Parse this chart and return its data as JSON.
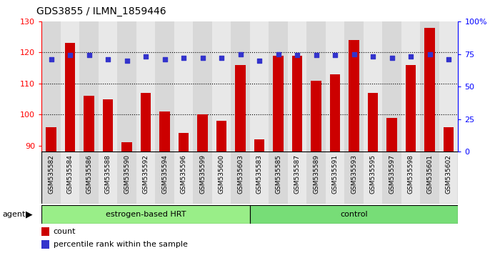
{
  "title": "GDS3855 / ILMN_1859446",
  "samples": [
    "GSM535582",
    "GSM535584",
    "GSM535586",
    "GSM535588",
    "GSM535590",
    "GSM535592",
    "GSM535594",
    "GSM535596",
    "GSM535599",
    "GSM535600",
    "GSM535603",
    "GSM535583",
    "GSM535585",
    "GSM535587",
    "GSM535589",
    "GSM535591",
    "GSM535593",
    "GSM535595",
    "GSM535597",
    "GSM535598",
    "GSM535601",
    "GSM535602"
  ],
  "counts": [
    96,
    123,
    106,
    105,
    91,
    107,
    101,
    94,
    100,
    98,
    116,
    92,
    119,
    119,
    111,
    113,
    124,
    107,
    99,
    116,
    128,
    96
  ],
  "percentiles": [
    71,
    74,
    74,
    71,
    70,
    73,
    71,
    72,
    72,
    72,
    75,
    70,
    75,
    74,
    74,
    74,
    75,
    73,
    72,
    73,
    75,
    71
  ],
  "bar_color": "#cc0000",
  "dot_color": "#3333cc",
  "ylim_left": [
    88,
    130
  ],
  "ylim_right": [
    0,
    100
  ],
  "yticks_left": [
    90,
    100,
    110,
    120,
    130
  ],
  "yticks_right": [
    0,
    25,
    50,
    75,
    100
  ],
  "hrt_count": 11,
  "ctrl_count": 11,
  "hrt_color": "#99ee88",
  "ctrl_color": "#77dd77",
  "xband_color1": "#d8d8d8",
  "xband_color2": "#e8e8e8",
  "plot_bg": "#ffffff",
  "agent_label": "agent",
  "hrt_label": "estrogen-based HRT",
  "ctrl_label": "control",
  "legend_count_label": "count",
  "legend_percentile_label": "percentile rank within the sample"
}
